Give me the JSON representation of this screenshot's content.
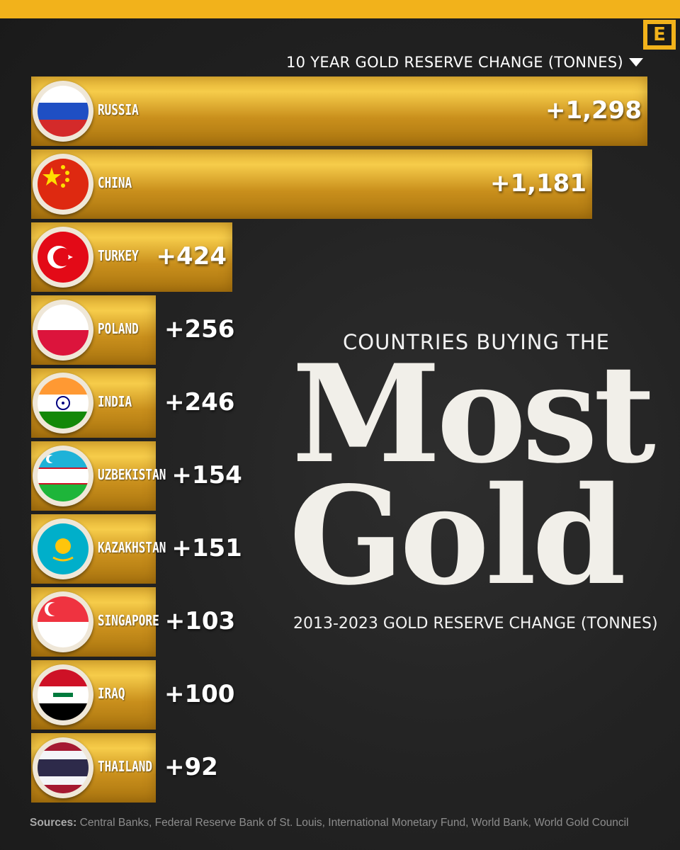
{
  "header": {
    "logo_letter": "E",
    "metric_label": "10 YEAR GOLD RESERVE CHANGE (TONNES)",
    "accent_color": "#f2b21b"
  },
  "headline": {
    "pre": "COUNTRIES BUYING THE",
    "line1": "Most",
    "line2": "Gold",
    "subtitle": "2013-2023 GOLD RESERVE CHANGE (TONNES)"
  },
  "sources": {
    "label": "Sources:",
    "text": " Central Banks, Federal Reserve Bank of St. Louis, International Monetary Fund, World Bank, World Gold Council"
  },
  "chart_data": {
    "type": "bar",
    "orientation": "horizontal",
    "categories": [
      "RUSSIA",
      "CHINA",
      "TURKEY",
      "POLAND",
      "INDIA",
      "UZBEKISTAN",
      "KAZAKHSTAN",
      "SINGAPORE",
      "IRAQ",
      "THAILAND"
    ],
    "values": [
      1298,
      1181,
      424,
      256,
      246,
      154,
      151,
      103,
      100,
      92
    ],
    "labels": [
      "+1,298",
      "+1,181",
      "+424",
      "+256",
      "+246",
      "+154",
      "+151",
      "+103",
      "+100",
      "+92"
    ],
    "flag_icons": [
      "russia-flag-icon",
      "china-flag-icon",
      "turkey-flag-icon",
      "poland-flag-icon",
      "india-flag-icon",
      "uzbekistan-flag-icon",
      "kazakhstan-flag-icon",
      "singapore-flag-icon",
      "iraq-flag-icon",
      "thailand-flag-icon"
    ],
    "bar_color": "#d9a22a",
    "background_color": "#232323"
  }
}
